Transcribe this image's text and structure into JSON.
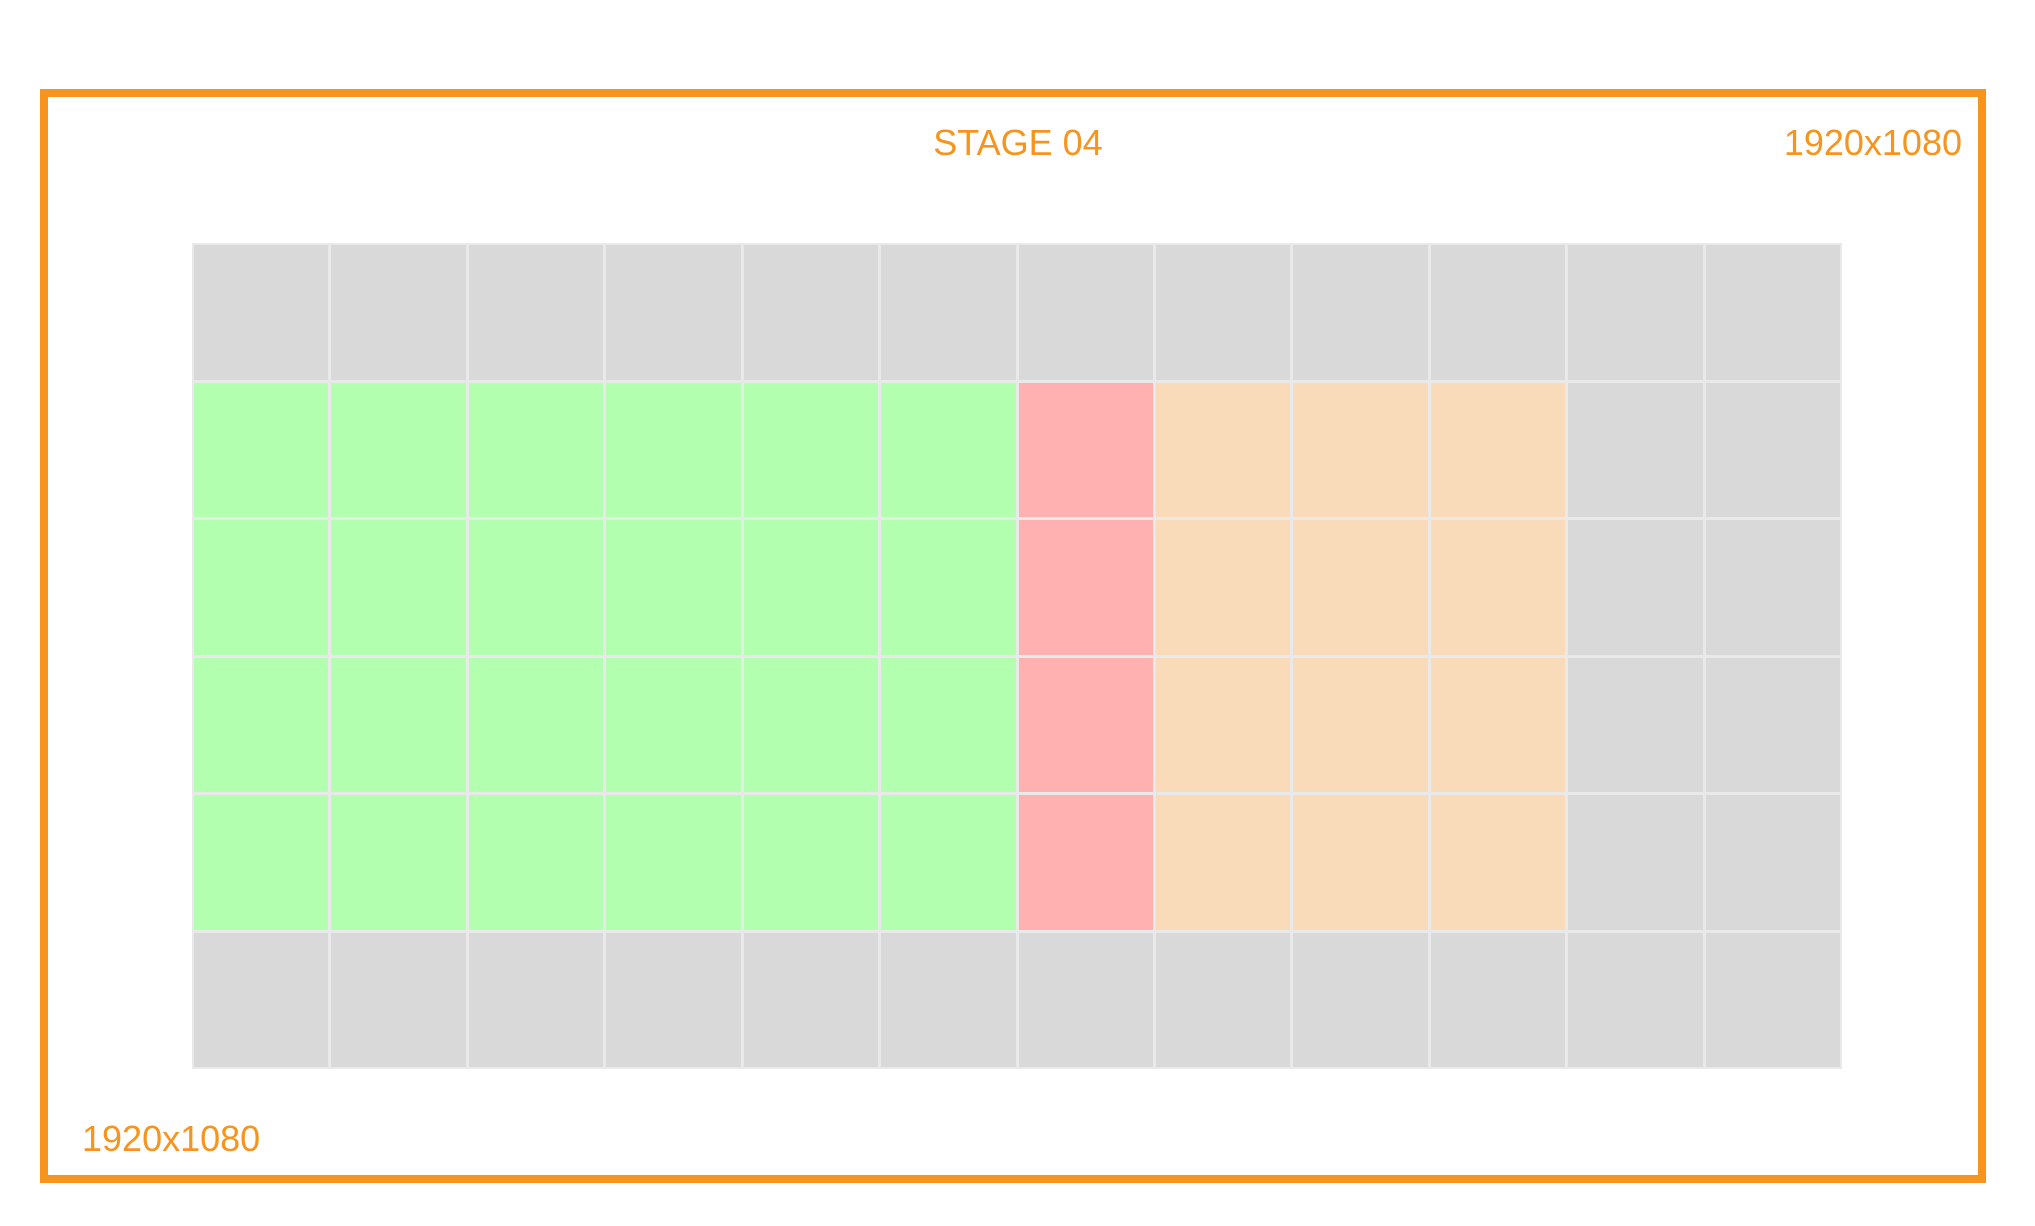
{
  "stage": {
    "title": "STAGE 04",
    "resolution_top_right": "1920x1080",
    "resolution_bottom_left": "1920x1080"
  },
  "colors": {
    "frame": "#f7941d",
    "label": "#f7941d",
    "inactive": "#d9d9d9",
    "green": "#b3ffb0",
    "red": "#ffb0b1",
    "peach": "#fadbb9",
    "grid_line": "#e9e9e9"
  },
  "grid": {
    "columns": 12,
    "rows": 6,
    "cells": [
      [
        "inactive",
        "inactive",
        "inactive",
        "inactive",
        "inactive",
        "inactive",
        "inactive",
        "inactive",
        "inactive",
        "inactive",
        "inactive",
        "inactive"
      ],
      [
        "green",
        "green",
        "green",
        "green",
        "green",
        "green",
        "red",
        "peach",
        "peach",
        "peach",
        "inactive",
        "inactive"
      ],
      [
        "green",
        "green",
        "green",
        "green",
        "green",
        "green",
        "red",
        "peach",
        "peach",
        "peach",
        "inactive",
        "inactive"
      ],
      [
        "green",
        "green",
        "green",
        "green",
        "green",
        "green",
        "red",
        "peach",
        "peach",
        "peach",
        "inactive",
        "inactive"
      ],
      [
        "green",
        "green",
        "green",
        "green",
        "green",
        "green",
        "red",
        "peach",
        "peach",
        "peach",
        "inactive",
        "inactive"
      ],
      [
        "inactive",
        "inactive",
        "inactive",
        "inactive",
        "inactive",
        "inactive",
        "inactive",
        "inactive",
        "inactive",
        "inactive",
        "inactive",
        "inactive"
      ]
    ]
  }
}
